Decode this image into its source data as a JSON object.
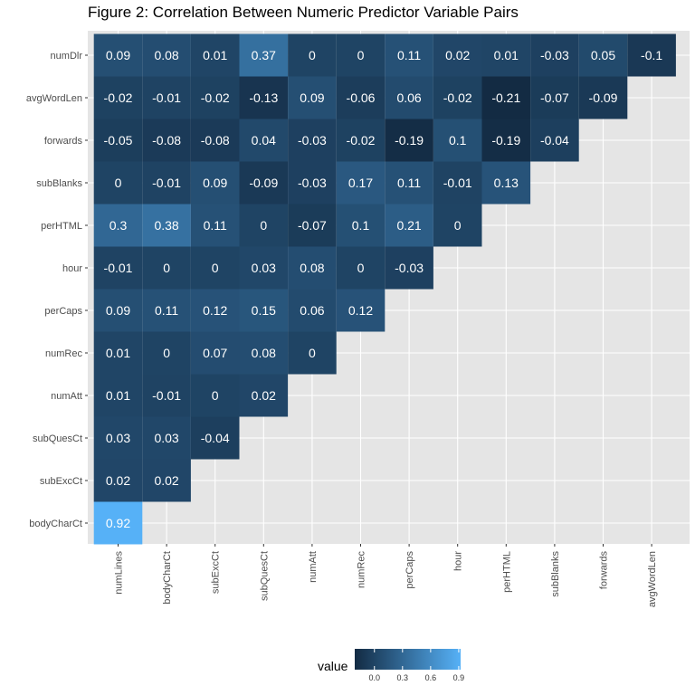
{
  "chart_data": {
    "type": "heatmap",
    "title": "Figure 2: Correlation Between Numeric Predictor Variable Pairs",
    "x_categories": [
      "numLines",
      "bodyCharCt",
      "subExcCt",
      "subQuesCt",
      "numAtt",
      "numRec",
      "perCaps",
      "hour",
      "perHTML",
      "subBlanks",
      "forwards",
      "avgWordLen"
    ],
    "y_categories": [
      "numDlr",
      "avgWordLen",
      "forwards",
      "subBlanks",
      "perHTML",
      "hour",
      "perCaps",
      "numRec",
      "numAtt",
      "subQuesCt",
      "subExcCt",
      "bodyCharCt"
    ],
    "rows": [
      {
        "y": "numDlr",
        "values": [
          0.09,
          0.08,
          0.01,
          0.37,
          0,
          0,
          0.11,
          0.02,
          0.01,
          -0.03,
          0.05,
          -0.1
        ]
      },
      {
        "y": "avgWordLen",
        "values": [
          -0.02,
          -0.01,
          -0.02,
          -0.13,
          0.09,
          -0.06,
          0.06,
          -0.02,
          -0.21,
          -0.07,
          -0.09
        ]
      },
      {
        "y": "forwards",
        "values": [
          -0.05,
          -0.08,
          -0.08,
          0.04,
          -0.03,
          -0.02,
          -0.19,
          0.1,
          -0.19,
          -0.04
        ]
      },
      {
        "y": "subBlanks",
        "values": [
          0,
          -0.01,
          0.09,
          -0.09,
          -0.03,
          0.17,
          0.11,
          -0.01,
          0.13
        ]
      },
      {
        "y": "perHTML",
        "values": [
          0.3,
          0.38,
          0.11,
          0,
          -0.07,
          0.1,
          0.21,
          0
        ]
      },
      {
        "y": "hour",
        "values": [
          -0.01,
          0,
          0,
          0.03,
          0.08,
          0,
          -0.03
        ]
      },
      {
        "y": "perCaps",
        "values": [
          0.09,
          0.11,
          0.12,
          0.15,
          0.06,
          0.12
        ]
      },
      {
        "y": "numRec",
        "values": [
          0.01,
          0,
          0.07,
          0.08,
          0
        ]
      },
      {
        "y": "numAtt",
        "values": [
          0.01,
          -0.01,
          0,
          0.02
        ]
      },
      {
        "y": "subQuesCt",
        "values": [
          0.03,
          0.03,
          -0.04
        ]
      },
      {
        "y": "subExcCt",
        "values": [
          0.02,
          0.02
        ]
      },
      {
        "y": "bodyCharCt",
        "values": [
          0.92
        ]
      }
    ],
    "legend": {
      "title": "value",
      "ticks": [
        0.0,
        0.3,
        0.6,
        0.9
      ],
      "tick_labels": [
        "0.0",
        "0.3",
        "0.6",
        "0.9"
      ],
      "range": [
        -0.21,
        0.92
      ],
      "low_color": "#132B43",
      "high_color": "#56B1F7",
      "placement": "bottom"
    },
    "panel_background": "#E5E5E5",
    "grid_color": "#FFFFFF",
    "grid": true,
    "cell_text_color": "#FFFFFF"
  }
}
